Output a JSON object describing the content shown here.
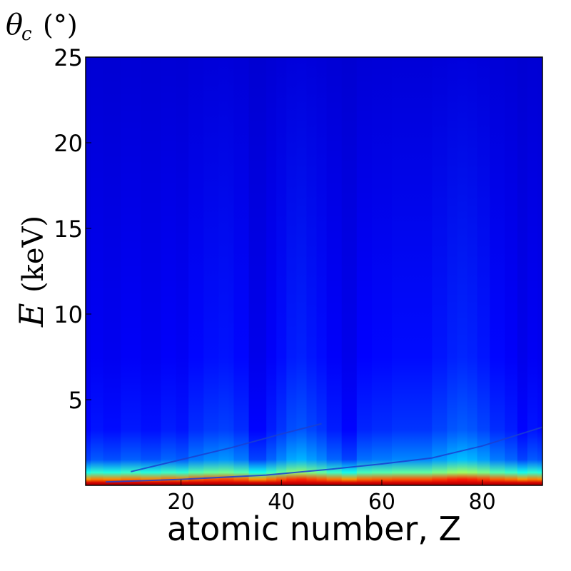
{
  "chart_data": {
    "type": "heatmap",
    "colormap": "jet",
    "title": "θc (°)",
    "title_symbol": "θ",
    "title_subscript": "c",
    "title_unit": "(°)",
    "xlabel": "atomic number, Z",
    "ylabel_symbol": "E",
    "ylabel_unit": "(keV)",
    "xlim": [
      1,
      92
    ],
    "ylim": [
      0,
      25
    ],
    "xticks": [
      20,
      40,
      60,
      80
    ],
    "yticks": [
      5,
      10,
      15,
      20,
      25
    ],
    "z": [
      1,
      3,
      6,
      10,
      14,
      18,
      20,
      23,
      26,
      29,
      30,
      31,
      36,
      38,
      40,
      42,
      44,
      46,
      48,
      50,
      54,
      56,
      60,
      64,
      68,
      72,
      74,
      76,
      78,
      80,
      83,
      86,
      88,
      90,
      92
    ],
    "column_brightness": [
      0.05,
      0.15,
      0.1,
      0.18,
      0.12,
      0.2,
      0.15,
      0.3,
      0.38,
      0.42,
      0.4,
      0.3,
      0.05,
      0.2,
      0.35,
      0.5,
      0.55,
      0.45,
      0.35,
      0.2,
      0.05,
      0.25,
      0.3,
      0.35,
      0.35,
      0.45,
      0.55,
      0.6,
      0.55,
      0.45,
      0.3,
      0.2,
      0.05,
      0.15,
      0.1
    ],
    "edge_lines": [
      {
        "name": "",
        "x": [
          5,
          20,
          37,
          50,
          60,
          70,
          80,
          92
        ],
        "y": [
          0.2,
          0.35,
          0.6,
          0.95,
          1.25,
          1.6,
          2.3,
          3.4
        ]
      },
      {
        "name": "",
        "x": [
          10,
          20,
          30,
          40,
          48
        ],
        "y": [
          0.8,
          1.5,
          2.2,
          3.0,
          3.6
        ]
      }
    ]
  }
}
